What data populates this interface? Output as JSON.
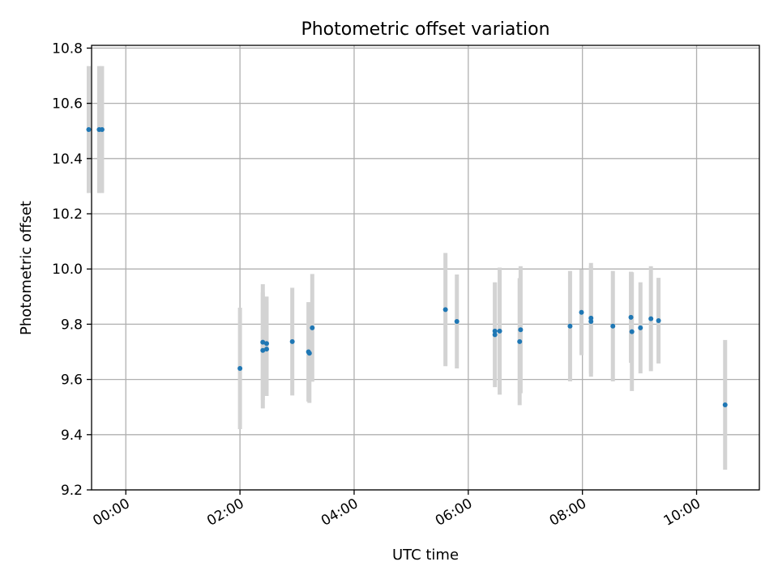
{
  "chart_data": {
    "type": "scatter",
    "title": "Photometric offset variation",
    "xlabel": "UTC time",
    "ylabel": "Photometric offset",
    "xlim": [
      "-00:36",
      "11:06"
    ],
    "ylim": [
      9.2,
      10.81
    ],
    "x_tick_values": [
      "00:00",
      "02:00",
      "04:00",
      "06:00",
      "08:00",
      "10:00"
    ],
    "x_tick_labels": [
      "00:00",
      "02:00",
      "04:00",
      "06:00",
      "08:00",
      "10:00"
    ],
    "y_ticks": [
      9.2,
      9.4,
      9.6,
      9.8,
      10.0,
      10.2,
      10.4,
      10.6,
      10.8
    ],
    "y_tick_labels": [
      "9.2",
      "9.4",
      "9.6",
      "9.8",
      "10.0",
      "10.2",
      "10.4",
      "10.6",
      "10.8"
    ],
    "grid": true,
    "marker_color": "#1f77b4",
    "errorbar_color": "#d3d3d3",
    "points": [
      {
        "x": "-00:39",
        "y": 10.505,
        "err": 0.23
      },
      {
        "x": "-00:28",
        "y": 10.505,
        "err": 0.23
      },
      {
        "x": "-00:25",
        "y": 10.505,
        "err": 0.23
      },
      {
        "x": "02:00",
        "y": 9.64,
        "err": 0.22
      },
      {
        "x": "02:24",
        "y": 9.735,
        "err": 0.21
      },
      {
        "x": "02:24",
        "y": 9.705,
        "err": 0.21
      },
      {
        "x": "02:28",
        "y": 9.73,
        "err": 0.17
      },
      {
        "x": "02:28",
        "y": 9.71,
        "err": 0.17
      },
      {
        "x": "02:55",
        "y": 9.737,
        "err": 0.195
      },
      {
        "x": "03:12",
        "y": 9.7,
        "err": 0.18
      },
      {
        "x": "03:13",
        "y": 9.695,
        "err": 0.18
      },
      {
        "x": "03:16",
        "y": 9.787,
        "err": 0.195
      },
      {
        "x": "05:36",
        "y": 9.853,
        "err": 0.205
      },
      {
        "x": "05:48",
        "y": 9.81,
        "err": 0.17
      },
      {
        "x": "06:28",
        "y": 9.775,
        "err": 0.175
      },
      {
        "x": "06:28",
        "y": 9.762,
        "err": 0.19
      },
      {
        "x": "06:33",
        "y": 9.775,
        "err": 0.23
      },
      {
        "x": "06:54",
        "y": 9.737,
        "err": 0.23
      },
      {
        "x": "06:55",
        "y": 9.78,
        "err": 0.23
      },
      {
        "x": "07:47",
        "y": 9.793,
        "err": 0.2
      },
      {
        "x": "07:59",
        "y": 9.843,
        "err": 0.155
      },
      {
        "x": "08:09",
        "y": 9.822,
        "err": 0.2
      },
      {
        "x": "08:09",
        "y": 9.81,
        "err": 0.2
      },
      {
        "x": "08:32",
        "y": 9.793,
        "err": 0.2
      },
      {
        "x": "08:51",
        "y": 9.825,
        "err": 0.165
      },
      {
        "x": "08:52",
        "y": 9.773,
        "err": 0.215
      },
      {
        "x": "09:01",
        "y": 9.787,
        "err": 0.165
      },
      {
        "x": "09:12",
        "y": 9.82,
        "err": 0.19
      },
      {
        "x": "09:20",
        "y": 9.813,
        "err": 0.155
      },
      {
        "x": "10:30",
        "y": 9.508,
        "err": 0.235
      }
    ]
  }
}
